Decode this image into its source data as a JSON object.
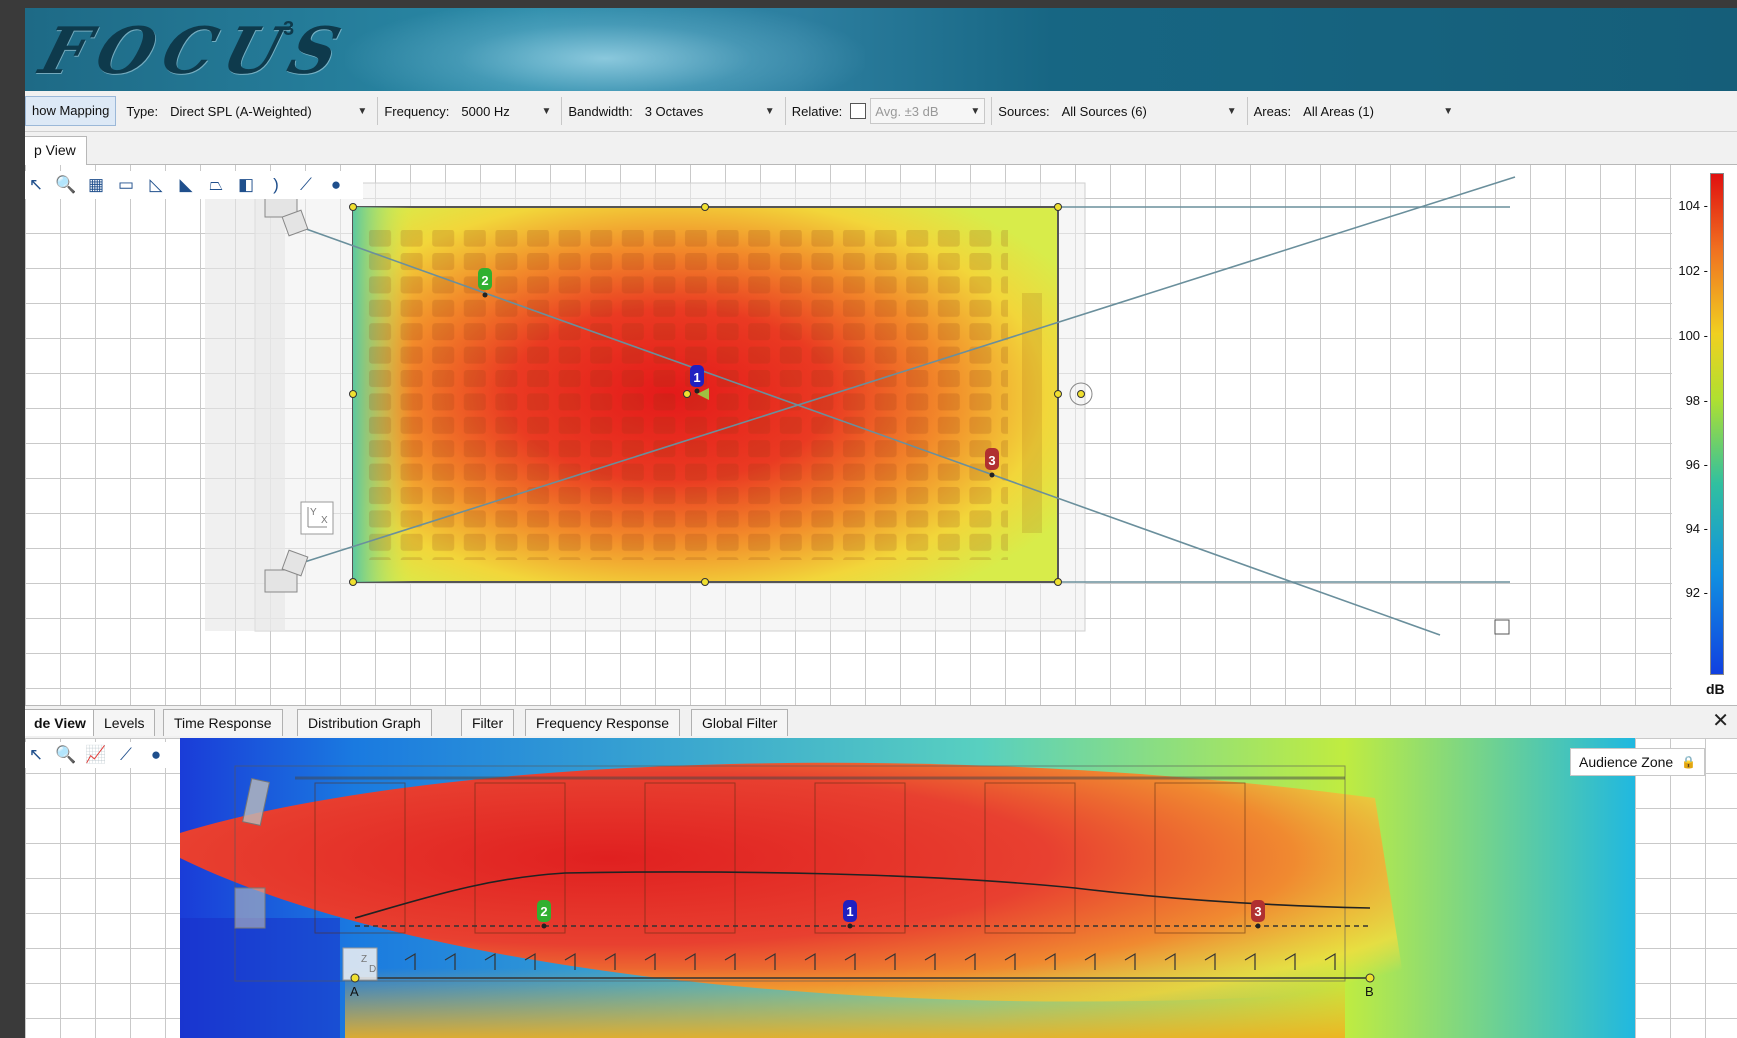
{
  "banner": {
    "logo_text": "FOCUS",
    "logo_sup": "3"
  },
  "toolbar": {
    "show_mapping": "how Mapping",
    "type_label": "Type:",
    "type_value": "Direct SPL (A-Weighted)",
    "frequency_label": "Frequency:",
    "frequency_value": "5000 Hz",
    "bandwidth_label": "Bandwidth:",
    "bandwidth_value": "3 Octaves",
    "relative_label": "Relative:",
    "relative_checked": false,
    "relative_value": "Avg. ±3 dB",
    "sources_label": "Sources:",
    "sources_value": "All Sources (6)",
    "areas_label": "Areas:",
    "areas_value": "All Areas (1)"
  },
  "top_tab": {
    "label": "p View"
  },
  "plan_tools": [
    "zoom-extents-icon",
    "zoom-icon",
    "grid-icon",
    "rectangle-icon",
    "quarter-shape-icon",
    "curved-shape-icon",
    "trapezoid-icon",
    "half-shape-icon",
    "line-array-icon",
    "ruler-icon",
    "microphone-icon"
  ],
  "colorbar": {
    "ticks": [
      "104",
      "102",
      "100",
      "98",
      "96",
      "94",
      "92"
    ],
    "unit": "dB"
  },
  "markers": [
    {
      "label": "1",
      "color": "#2020c0"
    },
    {
      "label": "2",
      "color": "#30b030"
    },
    {
      "label": "3",
      "color": "#b03030"
    }
  ],
  "axis_gizmo": {
    "y": "Y",
    "x": "X",
    "z": "Z",
    "d": "D"
  },
  "lower_tabs": [
    {
      "label": "de View",
      "active": true
    },
    {
      "label": "Levels",
      "active": false
    },
    {
      "label": "Time Response",
      "active": false
    },
    {
      "label": "Distribution Graph",
      "active": false
    },
    {
      "label": "Filter",
      "active": false
    },
    {
      "label": "Frequency Response",
      "active": false
    },
    {
      "label": "Global Filter",
      "active": false
    }
  ],
  "side_view": {
    "audience_zone": "Audience Zone",
    "point_a": "A",
    "point_b": "B"
  }
}
